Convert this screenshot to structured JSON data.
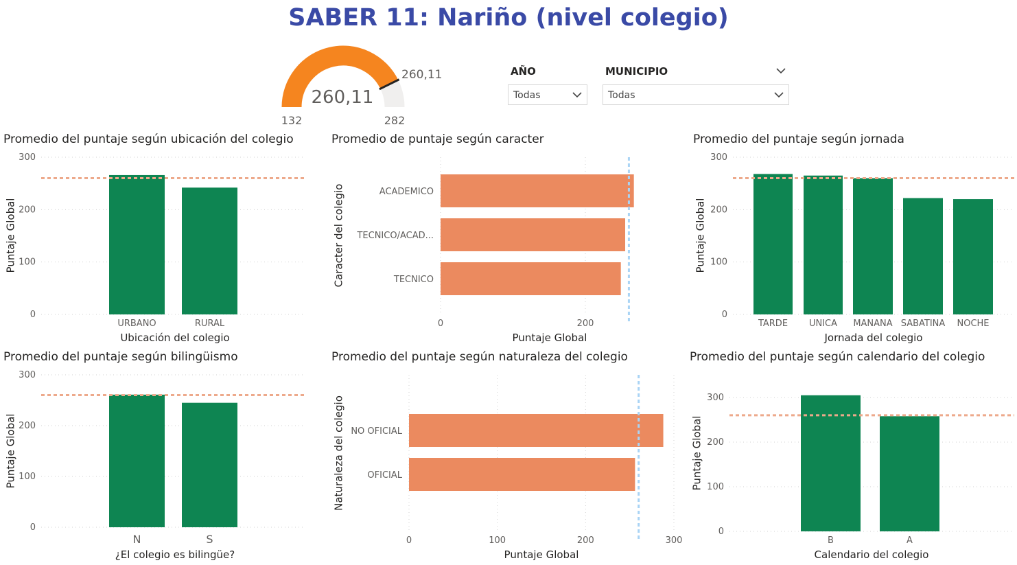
{
  "title": "SABER 11: Nariño (nivel colegio)",
  "gauge": {
    "value": 260.11,
    "value_label": "260,11",
    "target_label": "260,11",
    "min_label": "132",
    "max_label": "282",
    "min": 132,
    "max": 282,
    "fill_color": "#F5851F",
    "track_color": "#F0EFEE"
  },
  "filters": {
    "year": {
      "label": "AÑO",
      "value": "Todas"
    },
    "municipio": {
      "label": "MUNICIPIO",
      "value": "Todas"
    }
  },
  "colors": {
    "vertical_bar": "#0E8552",
    "horizontal_bar": "#EB8A5F",
    "vertical_ref_line": "#EDA98B",
    "horizontal_ref_line": "#A9D4F5"
  },
  "chart_data": [
    {
      "id": "ubicacion",
      "type": "bar",
      "title": "Promedio del puntaje según ubicación del colegio",
      "xlabel": "Ubicación del colegio",
      "ylabel": "Puntaje Global",
      "categories": [
        "URBANO",
        "RURAL"
      ],
      "values": [
        266,
        242
      ],
      "ylim": [
        0,
        300
      ],
      "yticks": [
        0,
        100,
        200,
        300
      ],
      "reference_line": 260.11
    },
    {
      "id": "caracter",
      "type": "bar",
      "orientation": "horizontal",
      "title": "Promedio de puntaje según caracter",
      "xlabel": "Puntaje Global",
      "ylabel": "Caracter del colegio",
      "categories": [
        "ACADEMICO",
        "TECNICO/ACAD...",
        "TECNICO"
      ],
      "values": [
        267,
        255,
        249
      ],
      "xlim": [
        0,
        270
      ],
      "xticks": [
        0,
        200
      ],
      "reference_line": 260.11
    },
    {
      "id": "jornada",
      "type": "bar",
      "title": "Promedio del puntaje según jornada",
      "xlabel": "Jornada del colegio",
      "ylabel": "Puntaje Global",
      "categories": [
        "TARDE",
        "UNICA",
        "MANANA",
        "SABATINA",
        "NOCHE"
      ],
      "values": [
        268,
        265,
        260,
        222,
        220
      ],
      "ylim": [
        0,
        300
      ],
      "yticks": [
        0,
        100,
        200,
        300
      ],
      "reference_line": 260.11
    },
    {
      "id": "bilinguismo",
      "type": "bar",
      "title": "Promedio del puntaje según bilingüismo",
      "xlabel": "¿El colegio es bilingüe?",
      "ylabel": "Puntaje Global",
      "categories": [
        "N",
        "S"
      ],
      "values": [
        261,
        245
      ],
      "ylim": [
        0,
        300
      ],
      "yticks": [
        0,
        100,
        200,
        300
      ],
      "reference_line": 260.11
    },
    {
      "id": "naturaleza",
      "type": "bar",
      "orientation": "horizontal",
      "title": "Promedio del puntaje según naturaleza del colegio",
      "xlabel": "Puntaje Global",
      "ylabel": "Naturaleza del colegio",
      "categories": [
        "NO OFICIAL",
        "OFICIAL"
      ],
      "values": [
        288,
        256
      ],
      "xlim": [
        0,
        300
      ],
      "xticks": [
        0,
        100,
        200,
        300
      ],
      "reference_line": 260.11
    },
    {
      "id": "calendario",
      "type": "bar",
      "title": "Promedio del puntaje según calendario del colegio",
      "xlabel": "Calendario del colegio",
      "ylabel": "Puntaje Global",
      "categories": [
        "B",
        "A"
      ],
      "values": [
        305,
        258
      ],
      "ylim": [
        0,
        300
      ],
      "yticks": [
        0,
        100,
        200,
        300
      ],
      "reference_line": 260.11
    }
  ]
}
